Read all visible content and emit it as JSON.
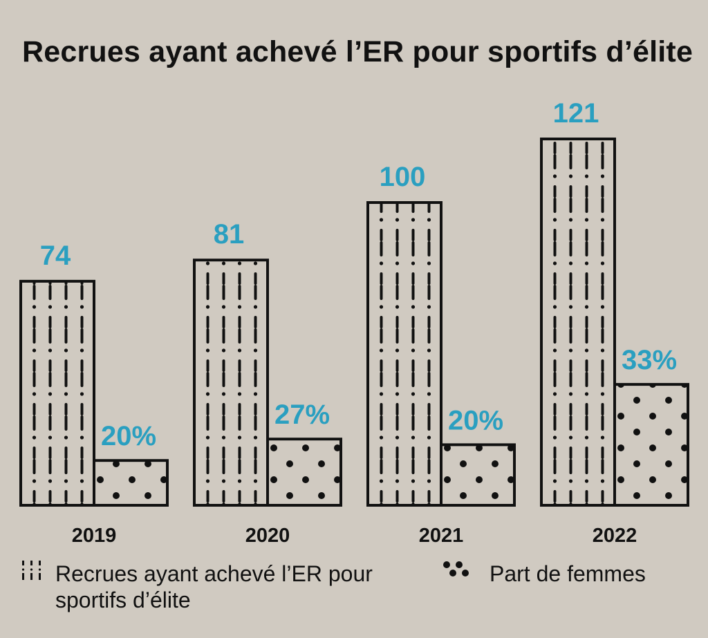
{
  "chart_data": {
    "type": "bar",
    "title": "Recrues ayant achevé l’ER pour sportifs d’élite",
    "categories": [
      "2019",
      "2020",
      "2021",
      "2022"
    ],
    "series": [
      {
        "name": "Recrues ayant achevé l’ER pour sportifs d’élite",
        "values": [
          74,
          81,
          100,
          121
        ],
        "labels": [
          "74",
          "81",
          "100",
          "121"
        ]
      },
      {
        "name": "Part de femmes",
        "values": [
          20,
          27,
          20,
          33
        ],
        "labels": [
          "20%",
          "27%",
          "20%",
          "33%"
        ],
        "unit": "percent of recruits"
      }
    ],
    "xlabel": "",
    "ylabel": "",
    "ylim": [
      0,
      121
    ],
    "grid": false,
    "legend": "bottom",
    "colors": {
      "value_labels": "#2a9fc0",
      "background": "#d0cac1",
      "ink": "#111111"
    }
  }
}
